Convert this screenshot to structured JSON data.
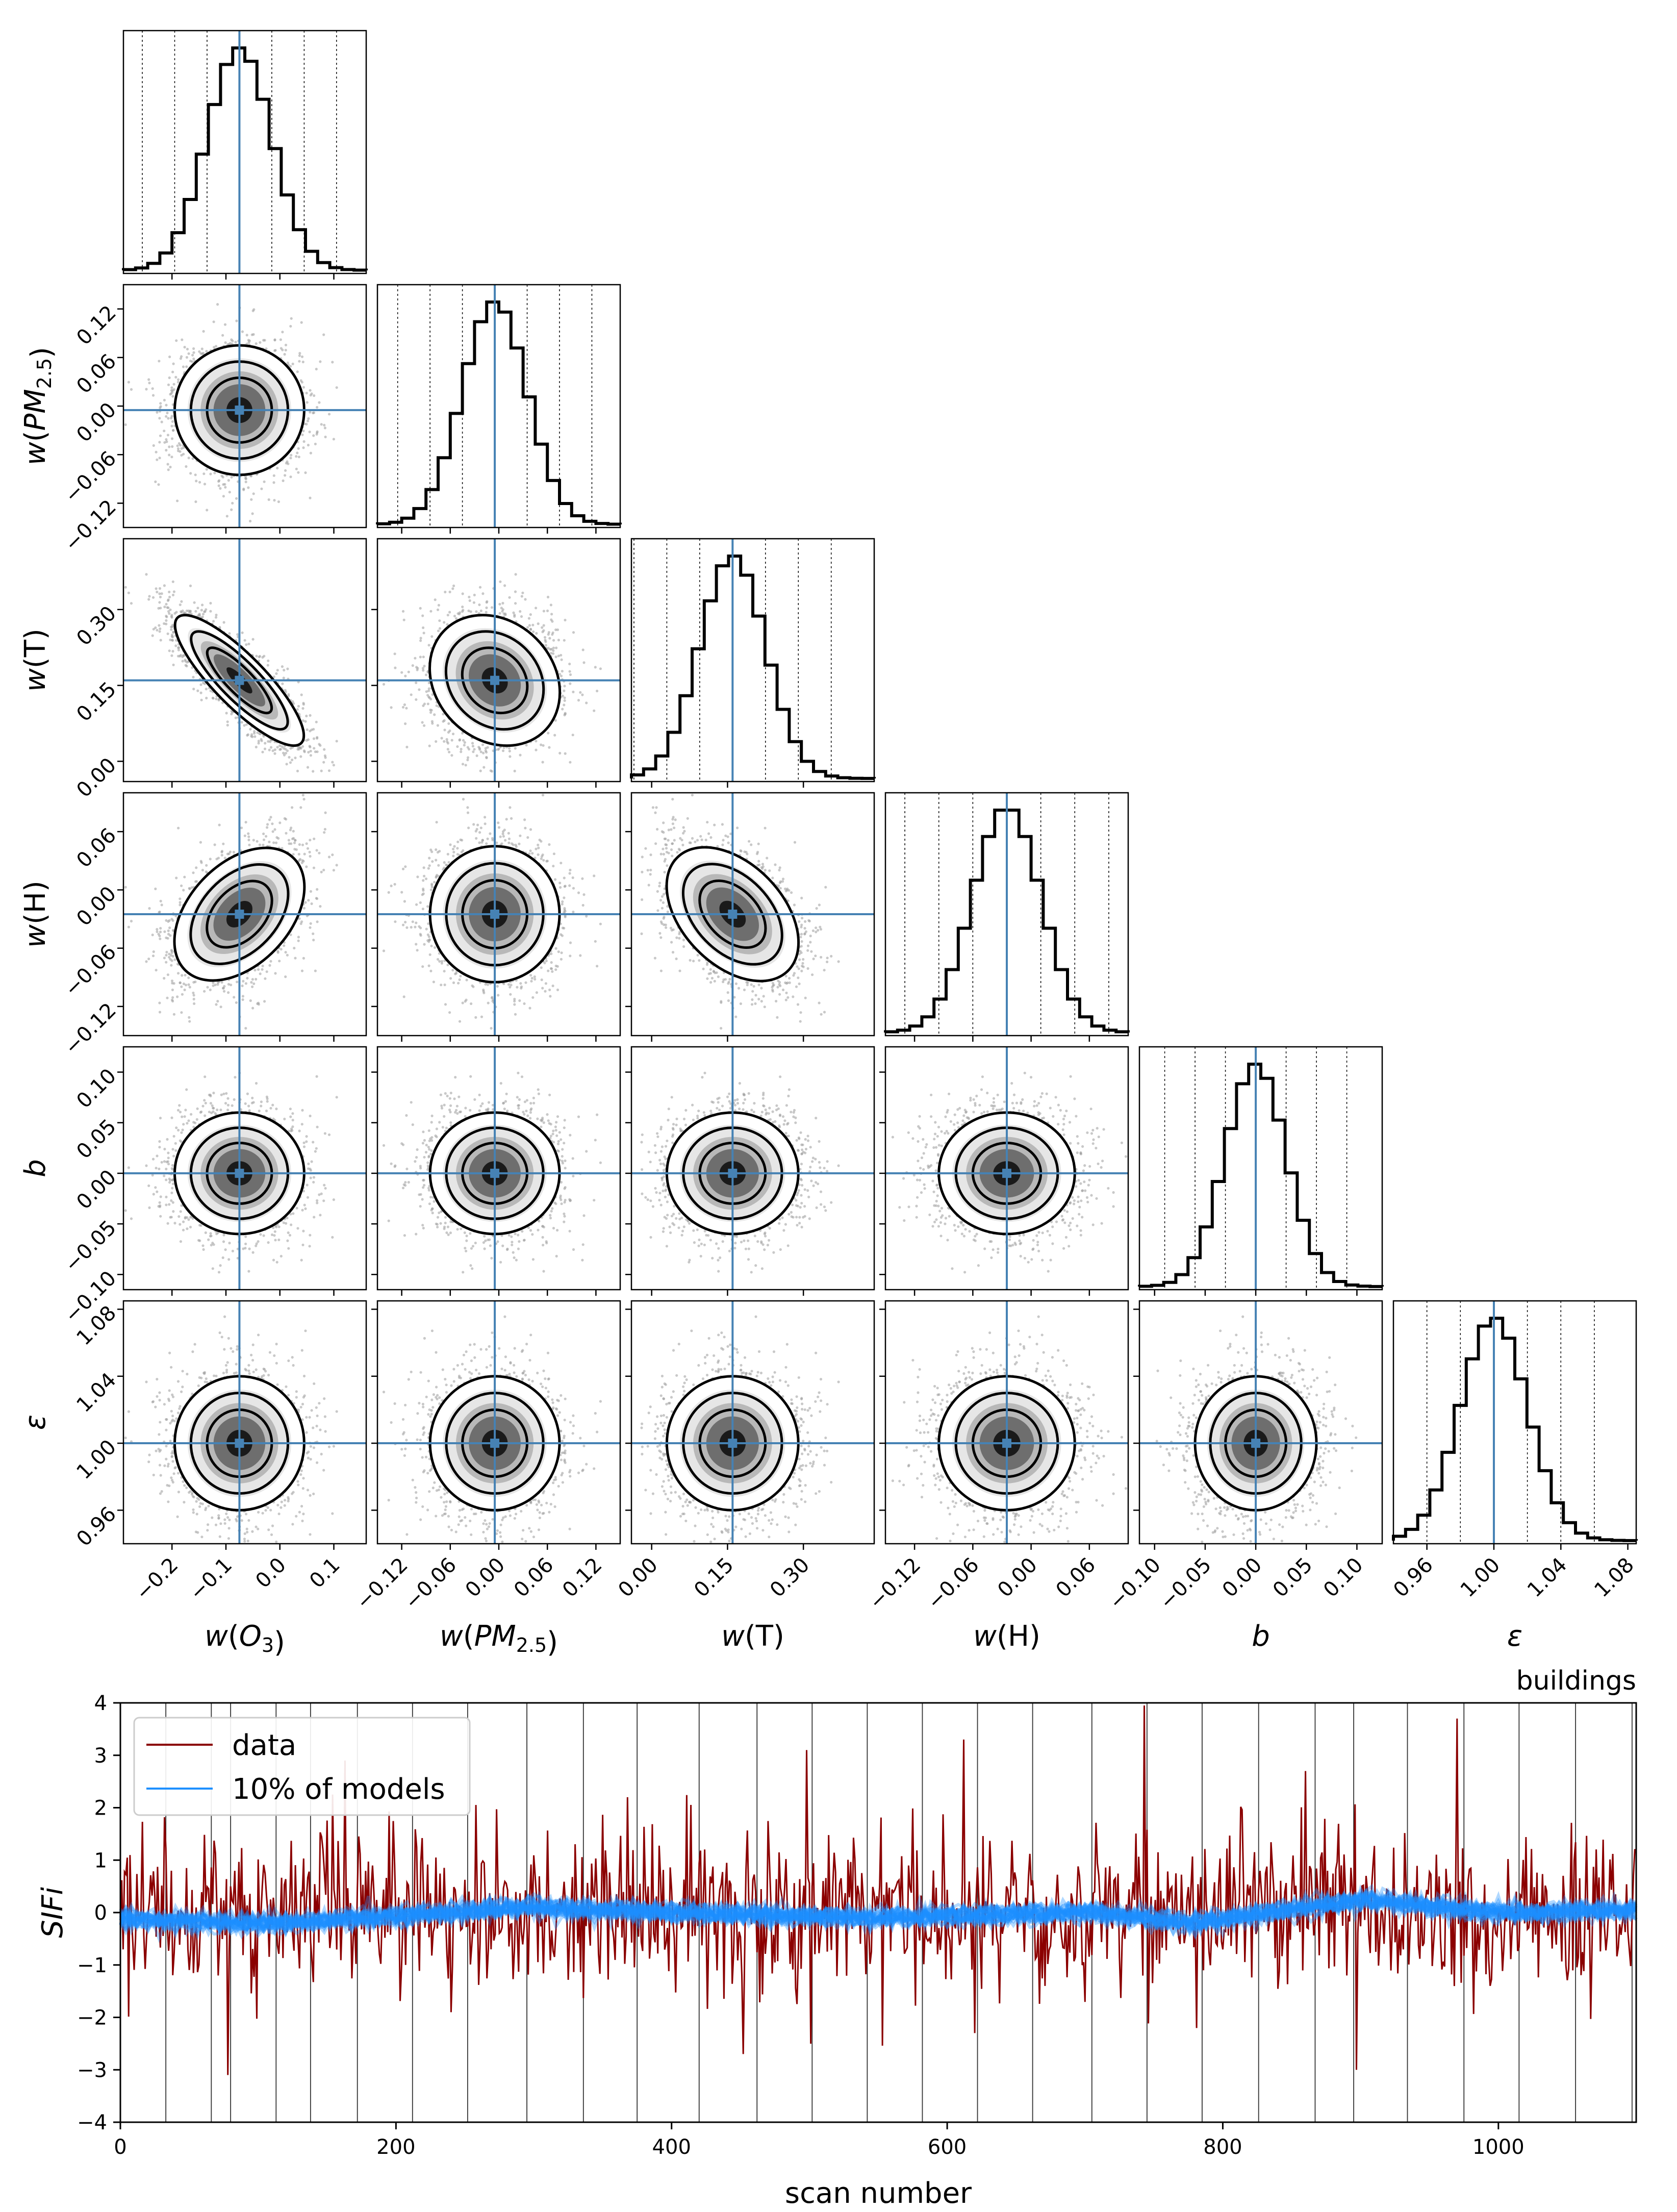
{
  "chart_data": [
    {
      "type": "corner",
      "title": "",
      "params": [
        {
          "key": "wO3",
          "xlabel": "w(O3)",
          "ylabel": "",
          "range": [
            -0.29,
            0.16
          ],
          "truth": -0.075,
          "mu": -0.075,
          "sigma": 0.06,
          "ticks": [
            -0.2,
            -0.1,
            0.0,
            0.1
          ],
          "tick_labels": [
            "−0.2",
            "−0.1",
            "0.0",
            "0.1"
          ]
        },
        {
          "key": "wPM",
          "xlabel": "w(PM2.5)",
          "ylabel": "w(PM2.5)",
          "range": [
            -0.15,
            0.15
          ],
          "truth": -0.005,
          "mu": -0.005,
          "sigma": 0.04,
          "ticks": [
            -0.12,
            -0.06,
            0.0,
            0.06,
            0.12
          ],
          "tick_labels": [
            "−0.12",
            "−0.06",
            "0.00",
            "0.06",
            "0.12"
          ]
        },
        {
          "key": "wT",
          "xlabel": "w(T)",
          "ylabel": "w(T)",
          "range": [
            -0.04,
            0.44
          ],
          "truth": 0.16,
          "mu": 0.16,
          "sigma": 0.065,
          "ticks": [
            0.0,
            0.15,
            0.3
          ],
          "tick_labels": [
            "0.00",
            "0.15",
            "0.30"
          ]
        },
        {
          "key": "wH",
          "xlabel": "w(H)",
          "ylabel": "w(H)",
          "range": [
            -0.15,
            0.1
          ],
          "truth": -0.025,
          "mu": -0.025,
          "sigma": 0.035,
          "ticks": [
            -0.12,
            -0.06,
            0.0,
            0.06
          ],
          "tick_labels": [
            "−0.12",
            "−0.06",
            "0.00",
            "0.06"
          ]
        },
        {
          "key": "b",
          "xlabel": "b",
          "ylabel": "b",
          "range": [
            -0.115,
            0.125
          ],
          "truth": 0.0,
          "mu": 0.0,
          "sigma": 0.03,
          "ticks": [
            -0.1,
            -0.05,
            0.0,
            0.05,
            0.1
          ],
          "tick_labels": [
            "−0.10",
            "−0.05",
            "0.00",
            "0.05",
            "0.10"
          ]
        },
        {
          "key": "eps",
          "xlabel": "ε",
          "ylabel": "ε",
          "range": [
            0.94,
            1.085
          ],
          "truth": 1.0,
          "mu": 1.0,
          "sigma": 0.02,
          "ticks": [
            0.96,
            1.0,
            1.04,
            1.08
          ],
          "tick_labels": [
            "0.96",
            "1.00",
            "1.04",
            "1.08"
          ]
        }
      ],
      "correlations": {
        "wO3-wT": -0.85,
        "wO3-wH": 0.45,
        "wT-wH": -0.45,
        "wPM-wT": -0.2
      },
      "quantile_lines_sigma": [
        -3,
        -2,
        -1,
        0,
        1,
        2,
        3
      ],
      "truth_color": "#4682b4",
      "contour_color": "#000000"
    },
    {
      "type": "line",
      "title": "buildings",
      "xlabel": "scan number",
      "ylabel": "SIFi",
      "xlim": [
        0,
        1100
      ],
      "ylim": [
        -4,
        4
      ],
      "xticks": [
        0,
        200,
        400,
        600,
        800,
        1000
      ],
      "yticks": [
        -4,
        -3,
        -2,
        -1,
        0,
        1,
        2,
        3,
        4
      ],
      "vlines": [
        33,
        66,
        80,
        113,
        138,
        172,
        212,
        252,
        295,
        336,
        375,
        420,
        462,
        502,
        542,
        582,
        622,
        662,
        705,
        745,
        785,
        826,
        867,
        895,
        934,
        975,
        1015,
        1056,
        1097
      ],
      "series": [
        {
          "name": "data",
          "color": "#8b0000",
          "n_points": 1100,
          "std": 0.8,
          "peaks": [
            [
              163,
              2.9
            ],
            [
              368,
              2.2
            ],
            [
              498,
              3.1
            ],
            [
              612,
              3.3
            ],
            [
              743,
              3.95
            ],
            [
              860,
              2.7
            ],
            [
              970,
              3.7
            ],
            [
              78,
              -3.1
            ],
            [
              452,
              -2.7
            ],
            [
              620,
              -2.3
            ],
            [
              897,
              -3.0
            ]
          ]
        },
        {
          "name": "10% of models",
          "color": "#1e90ff",
          "n_models": 30,
          "mean_trend": [
            [
              0,
              -0.12
            ],
            [
              100,
              -0.2
            ],
            [
              150,
              -0.15
            ],
            [
              300,
              0.1
            ],
            [
              400,
              0.0
            ],
            [
              550,
              -0.1
            ],
            [
              700,
              0.0
            ],
            [
              780,
              -0.2
            ],
            [
              900,
              0.25
            ],
            [
              1000,
              0.0
            ],
            [
              1100,
              0.05
            ]
          ]
        }
      ],
      "legend": [
        "data",
        "10% of models"
      ]
    }
  ]
}
